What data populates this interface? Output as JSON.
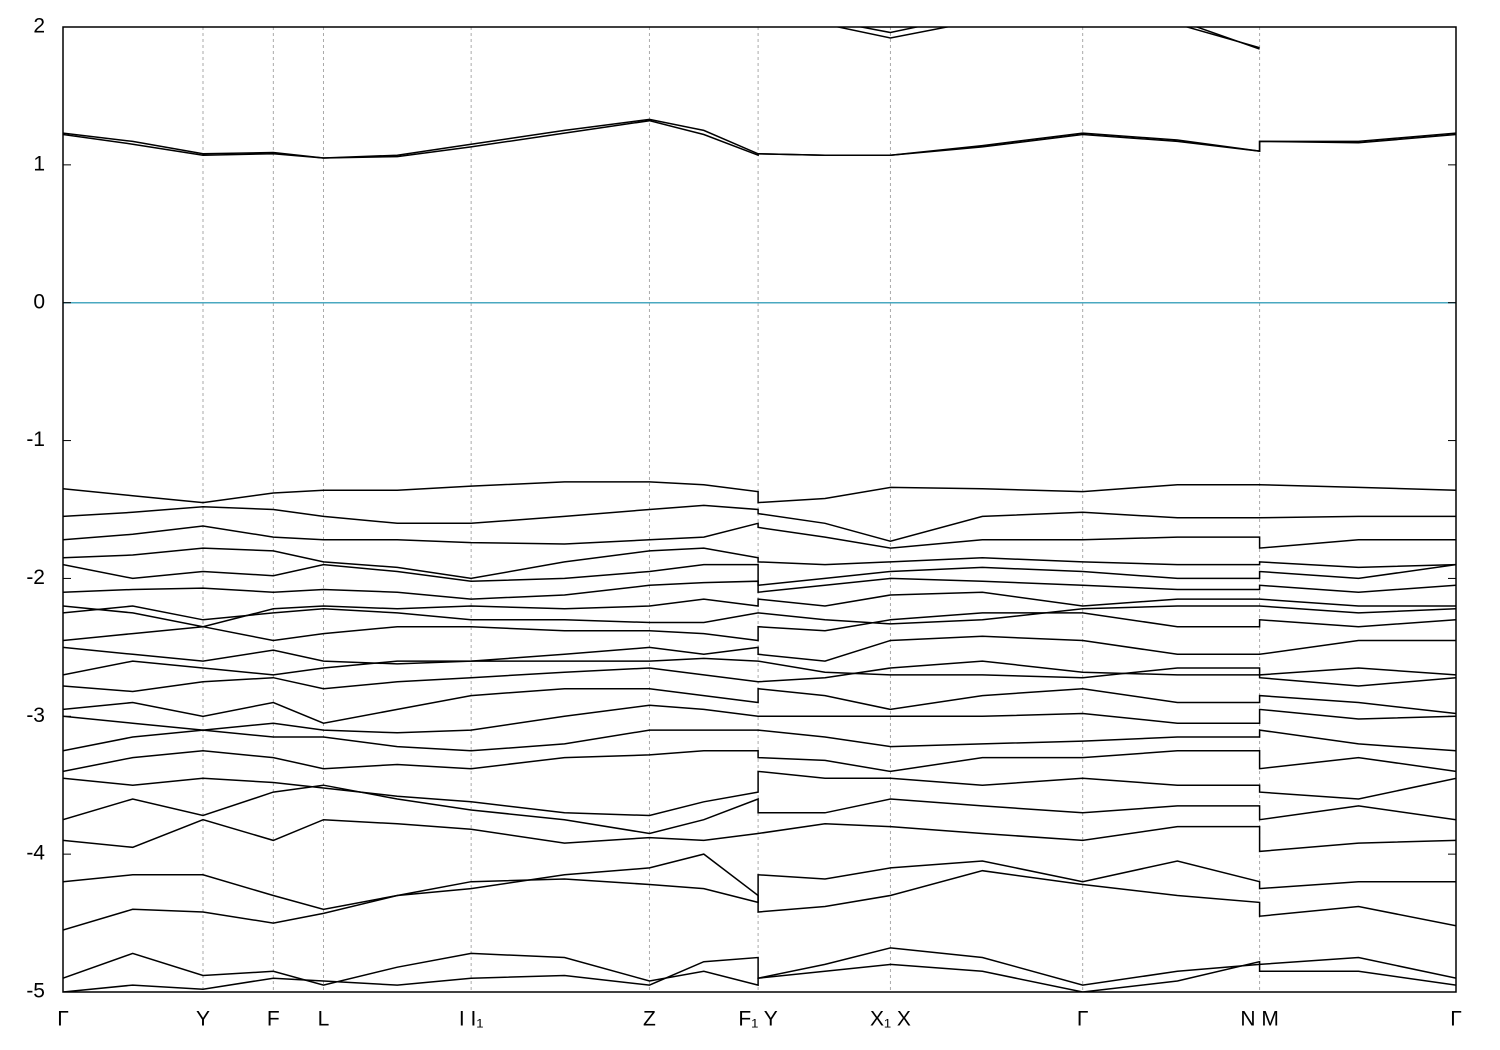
{
  "chart_data": {
    "type": "line",
    "xlim": [
      0,
      1
    ],
    "ylim": [
      -5,
      2
    ],
    "yticks": [
      2,
      1,
      0,
      -1,
      -2,
      -3,
      -4,
      -5
    ],
    "xticks": [
      {
        "value": 0,
        "label": "Γ"
      },
      {
        "value": 0.1005,
        "label": "Y"
      },
      {
        "value": 0.151,
        "label": "F"
      },
      {
        "value": 0.187,
        "label": "L"
      },
      {
        "value": 0.293,
        "label": "I I₁"
      },
      {
        "value": 0.421,
        "label": "Z"
      },
      {
        "value": 0.499,
        "label": "F₁ Y"
      },
      {
        "value": 0.594,
        "label": "X₁ X"
      },
      {
        "value": 0.732,
        "label": "Γ"
      },
      {
        "value": 0.859,
        "label": "N M"
      },
      {
        "value": 1,
        "label": "Γ"
      }
    ],
    "xgrid": true,
    "fermi_level": 0,
    "fermi_color": "#4aa8c0",
    "x": [
      0,
      0.05,
      0.1005,
      0.151,
      0.187,
      0.24,
      0.293,
      0.36,
      0.421,
      0.46,
      0.499,
      0.499,
      0.547,
      0.594,
      0.66,
      0.732,
      0.8,
      0.859,
      0.859,
      0.93,
      1
    ],
    "series": [
      {
        "color": "#000000",
        "values": [
          null,
          null,
          null,
          null,
          null,
          null,
          null,
          null,
          null,
          null,
          null,
          null,
          2.02,
          1.92,
          2.05,
          null,
          2.02,
          1.85,
          null,
          null,
          null
        ]
      },
      {
        "color": "#000000",
        "values": [
          null,
          null,
          null,
          null,
          null,
          null,
          null,
          null,
          null,
          null,
          null,
          null,
          2.05,
          1.96,
          2.1,
          null,
          2.05,
          1.84,
          null,
          null,
          null
        ]
      },
      {
        "color": "#000000",
        "values": [
          1.23,
          1.17,
          1.08,
          1.09,
          1.05,
          1.07,
          1.15,
          1.25,
          1.33,
          1.25,
          1.08,
          1.08,
          1.07,
          1.07,
          1.14,
          1.23,
          1.18,
          1.1,
          1.17,
          1.17,
          1.23
        ]
      },
      {
        "color": "#000000",
        "values": [
          1.22,
          1.15,
          1.07,
          1.08,
          1.05,
          1.06,
          1.13,
          1.23,
          1.32,
          1.22,
          1.07,
          1.08,
          1.07,
          1.07,
          1.13,
          1.22,
          1.17,
          1.1,
          1.17,
          1.16,
          1.22
        ]
      },
      {
        "color": "#000000",
        "values": [
          -1.35,
          -1.4,
          -1.45,
          -1.38,
          -1.36,
          -1.36,
          -1.33,
          -1.3,
          -1.3,
          -1.32,
          -1.37,
          -1.45,
          -1.42,
          -1.34,
          -1.35,
          -1.37,
          -1.32,
          -1.32,
          -1.32,
          -1.34,
          -1.36
        ]
      },
      {
        "color": "#000000",
        "values": [
          -1.55,
          -1.52,
          -1.48,
          -1.5,
          -1.55,
          -1.6,
          -1.6,
          -1.55,
          -1.5,
          -1.47,
          -1.5,
          -1.53,
          -1.6,
          -1.73,
          -1.55,
          -1.52,
          -1.56,
          -1.56,
          -1.56,
          -1.55,
          -1.55
        ]
      },
      {
        "color": "#000000",
        "values": [
          -1.72,
          -1.68,
          -1.62,
          -1.7,
          -1.72,
          -1.72,
          -1.74,
          -1.75,
          -1.72,
          -1.7,
          -1.6,
          -1.63,
          -1.7,
          -1.78,
          -1.72,
          -1.72,
          -1.7,
          -1.7,
          -1.78,
          -1.72,
          -1.72
        ]
      },
      {
        "color": "#000000",
        "values": [
          -1.85,
          -1.83,
          -1.78,
          -1.8,
          -1.88,
          -1.92,
          -2.0,
          -1.88,
          -1.8,
          -1.78,
          -1.85,
          -1.88,
          -1.9,
          -1.88,
          -1.85,
          -1.88,
          -1.9,
          -1.9,
          -1.88,
          -1.92,
          -1.9
        ]
      },
      {
        "color": "#000000",
        "values": [
          -1.9,
          -2.0,
          -1.95,
          -1.98,
          -1.9,
          -1.95,
          -2.02,
          -2.0,
          -1.95,
          -1.9,
          -1.9,
          -2.05,
          -2.0,
          -1.95,
          -1.92,
          -1.95,
          -2.0,
          -2.0,
          -1.95,
          -2.0,
          -1.9
        ]
      },
      {
        "color": "#000000",
        "values": [
          -2.1,
          -2.08,
          -2.07,
          -2.1,
          -2.08,
          -2.1,
          -2.15,
          -2.12,
          -2.05,
          -2.03,
          -2.02,
          -2.1,
          -2.05,
          -2.0,
          -2.02,
          -2.05,
          -2.08,
          -2.08,
          -2.05,
          -2.1,
          -2.05
        ]
      },
      {
        "color": "#000000",
        "values": [
          -2.2,
          -2.25,
          -2.35,
          -2.22,
          -2.2,
          -2.22,
          -2.2,
          -2.22,
          -2.2,
          -2.15,
          -2.2,
          -2.15,
          -2.2,
          -2.12,
          -2.1,
          -2.2,
          -2.15,
          -2.15,
          -2.15,
          -2.2,
          -2.2
        ]
      },
      {
        "color": "#000000",
        "values": [
          -2.25,
          -2.2,
          -2.3,
          -2.25,
          -2.22,
          -2.25,
          -2.3,
          -2.3,
          -2.32,
          -2.32,
          -2.25,
          -2.25,
          -2.3,
          -2.33,
          -2.3,
          -2.22,
          -2.2,
          -2.2,
          -2.2,
          -2.25,
          -2.22
        ]
      },
      {
        "color": "#000000",
        "values": [
          -2.45,
          -2.4,
          -2.35,
          -2.45,
          -2.4,
          -2.35,
          -2.35,
          -2.38,
          -2.38,
          -2.4,
          -2.45,
          -2.35,
          -2.38,
          -2.3,
          -2.25,
          -2.25,
          -2.35,
          -2.35,
          -2.3,
          -2.35,
          -2.3
        ]
      },
      {
        "color": "#000000",
        "values": [
          -2.5,
          -2.55,
          -2.6,
          -2.52,
          -2.6,
          -2.62,
          -2.6,
          -2.55,
          -2.5,
          -2.55,
          -2.5,
          -2.55,
          -2.6,
          -2.45,
          -2.42,
          -2.45,
          -2.55,
          -2.55,
          -2.55,
          -2.45,
          -2.45
        ]
      },
      {
        "color": "#000000",
        "values": [
          -2.7,
          -2.6,
          -2.65,
          -2.7,
          -2.65,
          -2.6,
          -2.6,
          -2.6,
          -2.6,
          -2.58,
          -2.6,
          -2.6,
          -2.68,
          -2.7,
          -2.7,
          -2.72,
          -2.65,
          -2.65,
          -2.7,
          -2.65,
          -2.7
        ]
      },
      {
        "color": "#000000",
        "values": [
          -2.78,
          -2.82,
          -2.75,
          -2.72,
          -2.8,
          -2.75,
          -2.72,
          -2.68,
          -2.65,
          -2.7,
          -2.75,
          -2.75,
          -2.72,
          -2.65,
          -2.6,
          -2.68,
          -2.7,
          -2.7,
          -2.72,
          -2.78,
          -2.72
        ]
      },
      {
        "color": "#000000",
        "values": [
          -2.95,
          -2.9,
          -3.0,
          -2.9,
          -3.05,
          -2.95,
          -2.85,
          -2.8,
          -2.8,
          -2.85,
          -2.9,
          -2.8,
          -2.85,
          -2.95,
          -2.85,
          -2.8,
          -2.9,
          -2.9,
          -2.85,
          -2.9,
          -2.98
        ]
      },
      {
        "color": "#000000",
        "values": [
          -3.0,
          -3.05,
          -3.1,
          -3.05,
          -3.1,
          -3.12,
          -3.1,
          -3.0,
          -2.92,
          -2.95,
          -3.0,
          -3.0,
          -3.0,
          -3.0,
          -3.0,
          -2.98,
          -3.05,
          -3.05,
          -2.95,
          -3.02,
          -3.0
        ]
      },
      {
        "color": "#000000",
        "values": [
          -3.25,
          -3.15,
          -3.1,
          -3.15,
          -3.15,
          -3.22,
          -3.25,
          -3.2,
          -3.1,
          -3.1,
          -3.1,
          -3.1,
          -3.15,
          -3.22,
          -3.2,
          -3.18,
          -3.15,
          -3.15,
          -3.1,
          -3.2,
          -3.25
        ]
      },
      {
        "color": "#000000",
        "values": [
          -3.4,
          -3.3,
          -3.25,
          -3.3,
          -3.38,
          -3.35,
          -3.38,
          -3.3,
          -3.28,
          -3.25,
          -3.25,
          -3.3,
          -3.32,
          -3.4,
          -3.3,
          -3.3,
          -3.25,
          -3.25,
          -3.38,
          -3.3,
          -3.4
        ]
      },
      {
        "color": "#000000",
        "values": [
          -3.45,
          -3.5,
          -3.45,
          -3.48,
          -3.52,
          -3.58,
          -3.62,
          -3.7,
          -3.72,
          -3.62,
          -3.55,
          -3.4,
          -3.45,
          -3.45,
          -3.5,
          -3.45,
          -3.5,
          -3.5,
          -3.55,
          -3.6,
          -3.45
        ]
      },
      {
        "color": "#000000",
        "values": [
          -3.75,
          -3.6,
          -3.72,
          -3.55,
          -3.5,
          -3.6,
          -3.68,
          -3.75,
          -3.85,
          -3.75,
          -3.6,
          -3.7,
          -3.7,
          -3.6,
          -3.65,
          -3.7,
          -3.65,
          -3.65,
          -3.75,
          -3.65,
          -3.75
        ]
      },
      {
        "color": "#000000",
        "values": [
          -3.9,
          -3.95,
          -3.75,
          -3.9,
          -3.75,
          -3.78,
          -3.82,
          -3.92,
          -3.88,
          -3.9,
          -3.85,
          -3.85,
          -3.78,
          -3.8,
          -3.85,
          -3.9,
          -3.8,
          -3.8,
          -3.98,
          -3.92,
          -3.9
        ]
      },
      {
        "color": "#000000",
        "values": [
          -4.2,
          -4.15,
          -4.15,
          -4.3,
          -4.4,
          -4.3,
          -4.2,
          -4.18,
          -4.22,
          -4.25,
          -4.35,
          -4.15,
          -4.18,
          -4.1,
          -4.05,
          -4.2,
          -4.05,
          -4.2,
          -4.25,
          -4.2,
          -4.2
        ]
      },
      {
        "color": "#000000",
        "values": [
          -4.55,
          -4.4,
          -4.42,
          -4.5,
          -4.43,
          -4.3,
          -4.25,
          -4.15,
          -4.1,
          -4.0,
          -4.3,
          -4.42,
          -4.38,
          -4.3,
          -4.12,
          -4.22,
          -4.3,
          -4.35,
          -4.45,
          -4.38,
          -4.52
        ]
      },
      {
        "color": "#000000",
        "values": [
          -4.9,
          -4.72,
          -4.88,
          -4.85,
          -4.95,
          -4.82,
          -4.72,
          -4.75,
          -4.92,
          -4.85,
          -4.95,
          -4.9,
          -4.8,
          -4.68,
          -4.75,
          -4.95,
          -4.85,
          -4.8,
          -4.8,
          -4.75,
          -4.9
        ]
      },
      {
        "color": "#000000",
        "values": [
          -5.0,
          -4.95,
          -4.98,
          -4.9,
          -4.92,
          -4.95,
          -4.9,
          -4.88,
          -4.95,
          -4.78,
          -4.75,
          -4.9,
          -4.85,
          -4.8,
          -4.85,
          -5.0,
          -4.92,
          -4.78,
          -4.85,
          -4.85,
          -4.95
        ]
      }
    ]
  }
}
